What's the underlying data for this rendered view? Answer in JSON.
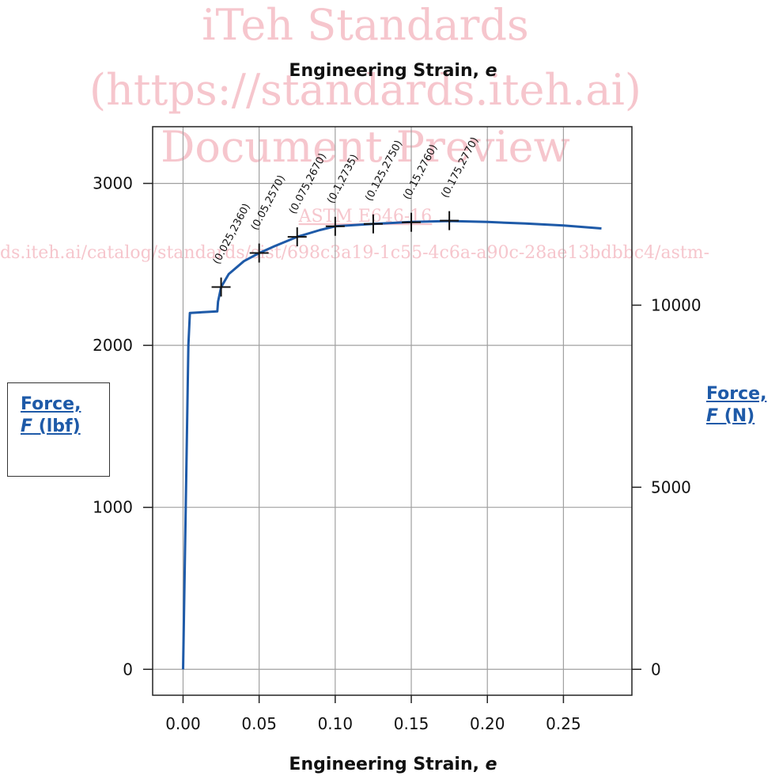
{
  "watermark": {
    "line1": "iTeh Standards",
    "line2": "(https://standards.iteh.ai)",
    "line3": "Document Preview",
    "line4": "ASTM E646-16",
    "line5": "ds.iteh.ai/catalog/standards/sist/698c3a19-1c55-4c6a-a90c-28ae13bdbbc4/astm-"
  },
  "colors": {
    "curve": "#1e5aa8",
    "label_blue": "#1e5aa8",
    "grid": "#a0a0a0",
    "watermark": "#f6c6cd"
  },
  "labels": {
    "left_axis": {
      "line1": "Force,",
      "line2_italic": "F",
      "line2_rest": " (lbf)"
    },
    "right_axis": {
      "line1": "Force,",
      "line2_italic": "F",
      "line2_rest": " (N)"
    }
  },
  "chart_data": {
    "type": "line",
    "title_top": {
      "text": "Engineering Strain, ",
      "italic": "e"
    },
    "xlabel": {
      "text": "Engineering Strain, ",
      "italic": "e"
    },
    "xlim": [
      -0.02,
      0.295
    ],
    "ylim": [
      -160,
      3350
    ],
    "x_ticks": [
      0.0,
      0.05,
      0.1,
      0.15,
      0.2,
      0.25
    ],
    "x_tick_labels": [
      "0.00",
      "0.05",
      "0.10",
      "0.15",
      "0.20",
      "0.25"
    ],
    "y_ticks": [
      0,
      1000,
      2000,
      3000
    ],
    "y_tick_labels": [
      "0",
      "1000",
      "2000",
      "3000"
    ],
    "y2_ticks": [
      0,
      5000,
      10000
    ],
    "y2_tick_labels": [
      "0",
      "5000",
      "10000"
    ],
    "y2_conversion": 4.44822,
    "grid": true,
    "curve": {
      "x": [
        0,
        0.0035,
        0.0045,
        0.0225,
        0.023,
        0.025,
        0.03,
        0.04,
        0.05,
        0.06,
        0.075,
        0.09,
        0.1,
        0.125,
        0.15,
        0.175,
        0.2,
        0.225,
        0.25,
        0.275
      ],
      "y": [
        0,
        2000,
        2200,
        2210,
        2270,
        2360,
        2440,
        2520,
        2570,
        2612,
        2670,
        2712,
        2735,
        2750,
        2762,
        2768,
        2762,
        2752,
        2740,
        2722
      ]
    },
    "markers": [
      {
        "x": 0.025,
        "y": 2360,
        "label": "(0.025,2360)"
      },
      {
        "x": 0.05,
        "y": 2570,
        "label": "(0.05,2570)"
      },
      {
        "x": 0.075,
        "y": 2670,
        "label": "(0.075,2670)"
      },
      {
        "x": 0.1,
        "y": 2735,
        "label": "(0.1,2735)"
      },
      {
        "x": 0.125,
        "y": 2750,
        "label": "(0.125,2750)"
      },
      {
        "x": 0.15,
        "y": 2760,
        "label": "(0.15,2760)"
      },
      {
        "x": 0.175,
        "y": 2770,
        "label": "(0.175,2770)"
      }
    ]
  }
}
